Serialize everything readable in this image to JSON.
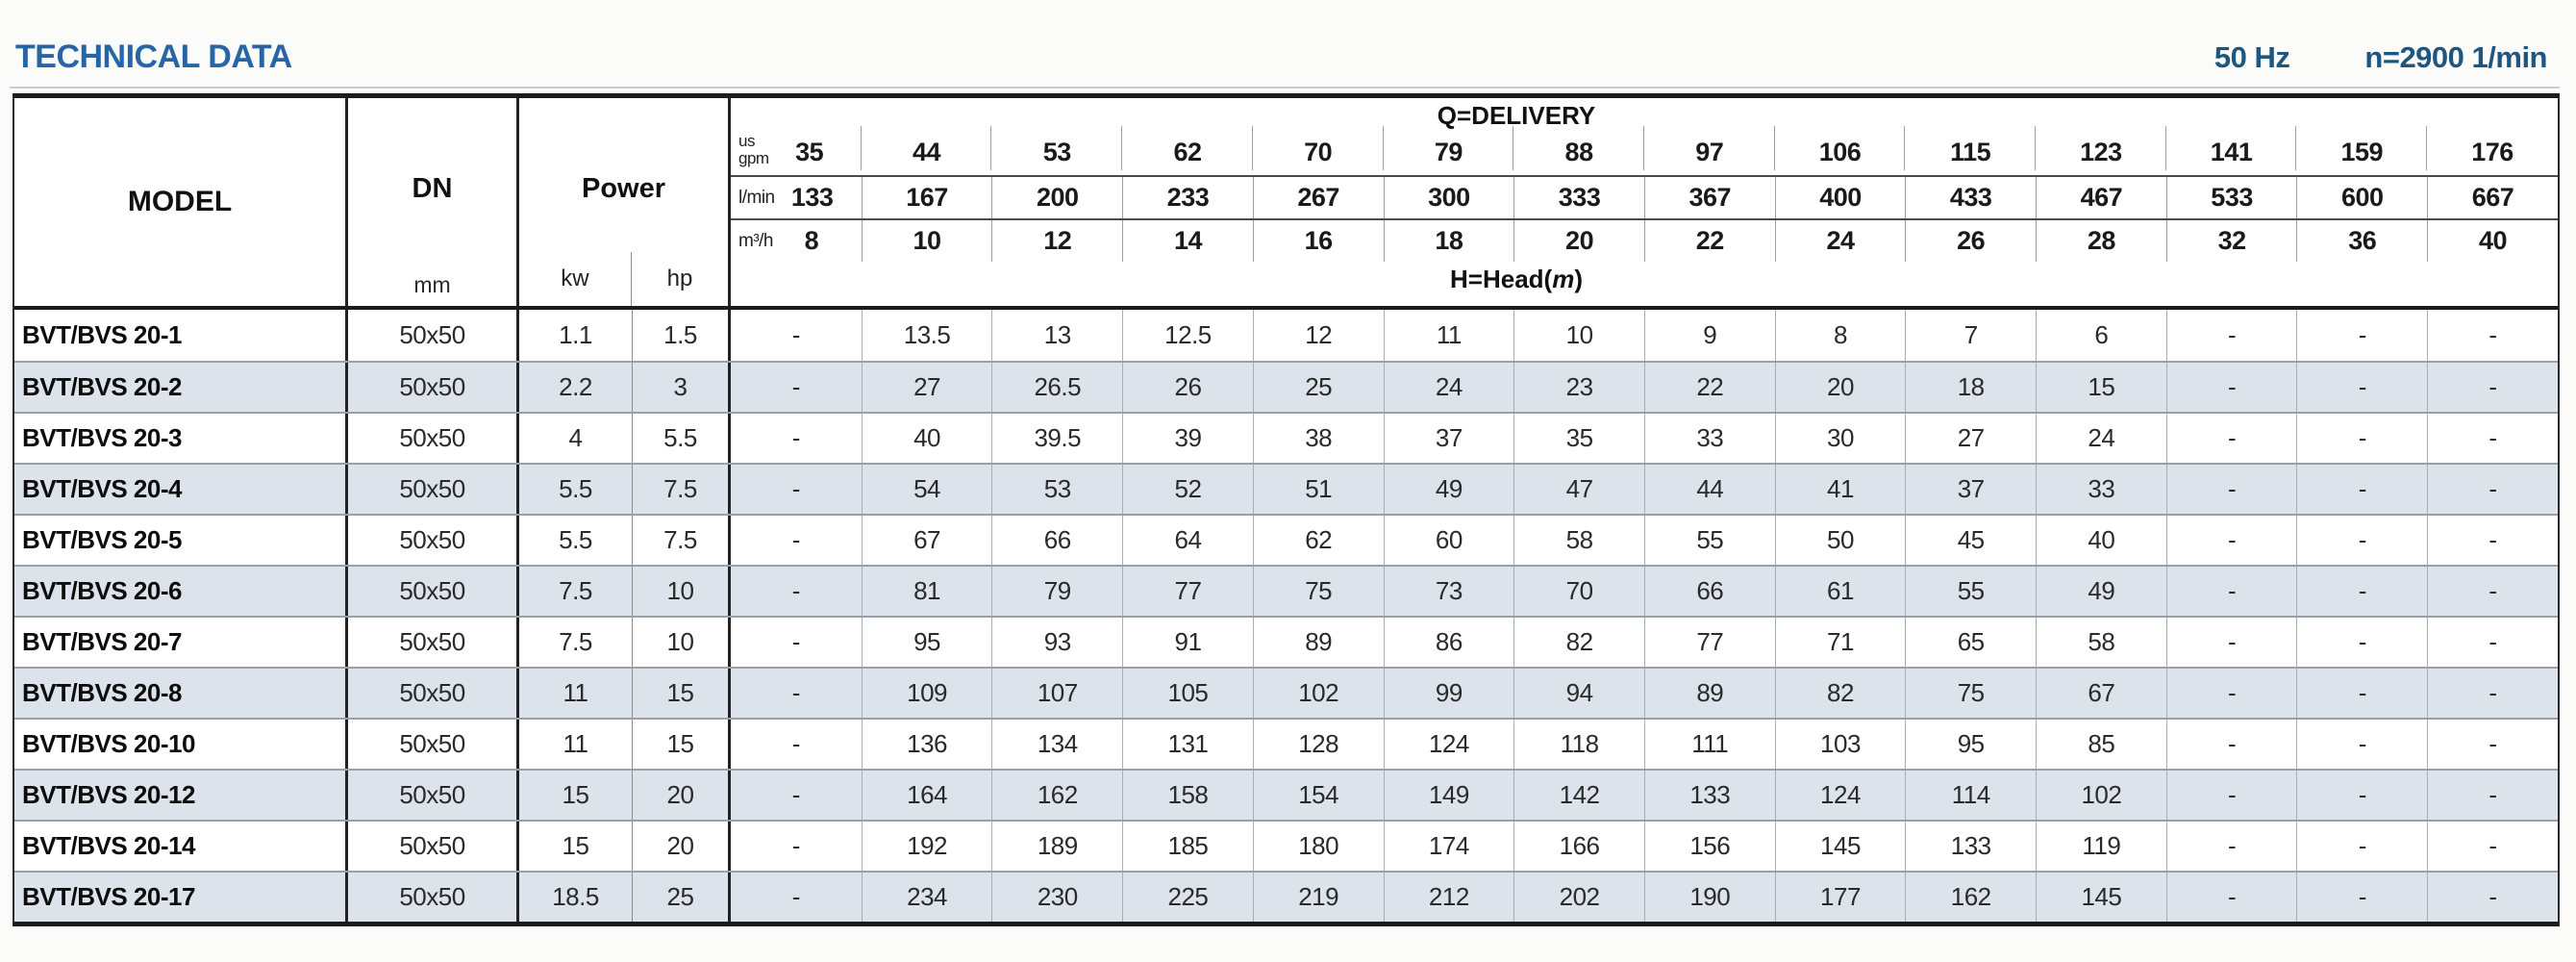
{
  "header": {
    "title": "TECHNICAL DATA",
    "frequency": "50 Hz",
    "speed": "n=2900 1/min"
  },
  "colors": {
    "title_blue": "#2765a4",
    "right_header_blue": "#1d567f",
    "shaded_row": "#dce3ea",
    "border_dark": "#1c1c1c"
  },
  "table": {
    "columns": {
      "model": "MODEL",
      "dn": "DN",
      "dn_unit": "mm",
      "power": "Power",
      "power_kw": "kw",
      "power_hp": "hp"
    },
    "delivery": {
      "title": "Q=DELIVERY",
      "head_prefix": "H=Head(",
      "head_m": "m",
      "head_suffix": ")",
      "units": {
        "gpm_top": "us",
        "gpm_bottom": "gpm",
        "lmin": "l/min",
        "m3h": "m³/h"
      },
      "gpm": [
        "35",
        "44",
        "53",
        "62",
        "70",
        "79",
        "88",
        "97",
        "106",
        "115",
        "123",
        "141",
        "159",
        "176"
      ],
      "lmin": [
        "133",
        "167",
        "200",
        "233",
        "267",
        "300",
        "333",
        "367",
        "400",
        "433",
        "467",
        "533",
        "600",
        "667"
      ],
      "m3h": [
        "8",
        "10",
        "12",
        "14",
        "16",
        "18",
        "20",
        "22",
        "24",
        "26",
        "28",
        "32",
        "36",
        "40"
      ]
    },
    "rows": [
      {
        "model": "BVT/BVS 20-1",
        "dn": "50x50",
        "kw": "1.1",
        "hp": "1.5",
        "values": [
          "-",
          "13.5",
          "13",
          "12.5",
          "12",
          "11",
          "10",
          "9",
          "8",
          "7",
          "6",
          "-",
          "-",
          "-"
        ]
      },
      {
        "model": "BVT/BVS 20-2",
        "dn": "50x50",
        "kw": "2.2",
        "hp": "3",
        "values": [
          "-",
          "27",
          "26.5",
          "26",
          "25",
          "24",
          "23",
          "22",
          "20",
          "18",
          "15",
          "-",
          "-",
          "-"
        ]
      },
      {
        "model": "BVT/BVS 20-3",
        "dn": "50x50",
        "kw": "4",
        "hp": "5.5",
        "values": [
          "-",
          "40",
          "39.5",
          "39",
          "38",
          "37",
          "35",
          "33",
          "30",
          "27",
          "24",
          "-",
          "-",
          "-"
        ]
      },
      {
        "model": "BVT/BVS 20-4",
        "dn": "50x50",
        "kw": "5.5",
        "hp": "7.5",
        "values": [
          "-",
          "54",
          "53",
          "52",
          "51",
          "49",
          "47",
          "44",
          "41",
          "37",
          "33",
          "-",
          "-",
          "-"
        ]
      },
      {
        "model": "BVT/BVS 20-5",
        "dn": "50x50",
        "kw": "5.5",
        "hp": "7.5",
        "values": [
          "-",
          "67",
          "66",
          "64",
          "62",
          "60",
          "58",
          "55",
          "50",
          "45",
          "40",
          "-",
          "-",
          "-"
        ]
      },
      {
        "model": "BVT/BVS 20-6",
        "dn": "50x50",
        "kw": "7.5",
        "hp": "10",
        "values": [
          "-",
          "81",
          "79",
          "77",
          "75",
          "73",
          "70",
          "66",
          "61",
          "55",
          "49",
          "-",
          "-",
          "-"
        ]
      },
      {
        "model": "BVT/BVS 20-7",
        "dn": "50x50",
        "kw": "7.5",
        "hp": "10",
        "values": [
          "-",
          "95",
          "93",
          "91",
          "89",
          "86",
          "82",
          "77",
          "71",
          "65",
          "58",
          "-",
          "-",
          "-"
        ]
      },
      {
        "model": "BVT/BVS 20-8",
        "dn": "50x50",
        "kw": "11",
        "hp": "15",
        "values": [
          "-",
          "109",
          "107",
          "105",
          "102",
          "99",
          "94",
          "89",
          "82",
          "75",
          "67",
          "-",
          "-",
          "-"
        ]
      },
      {
        "model": "BVT/BVS 20-10",
        "dn": "50x50",
        "kw": "11",
        "hp": "15",
        "values": [
          "-",
          "136",
          "134",
          "131",
          "128",
          "124",
          "118",
          "111",
          "103",
          "95",
          "85",
          "-",
          "-",
          "-"
        ]
      },
      {
        "model": "BVT/BVS 20-12",
        "dn": "50x50",
        "kw": "15",
        "hp": "20",
        "values": [
          "-",
          "164",
          "162",
          "158",
          "154",
          "149",
          "142",
          "133",
          "124",
          "114",
          "102",
          "-",
          "-",
          "-"
        ]
      },
      {
        "model": "BVT/BVS 20-14",
        "dn": "50x50",
        "kw": "15",
        "hp": "20",
        "values": [
          "-",
          "192",
          "189",
          "185",
          "180",
          "174",
          "166",
          "156",
          "145",
          "133",
          "119",
          "-",
          "-",
          "-"
        ]
      },
      {
        "model": "BVT/BVS 20-17",
        "dn": "50x50",
        "kw": "18.5",
        "hp": "25",
        "values": [
          "-",
          "234",
          "230",
          "225",
          "219",
          "212",
          "202",
          "190",
          "177",
          "162",
          "145",
          "-",
          "-",
          "-"
        ]
      }
    ]
  }
}
